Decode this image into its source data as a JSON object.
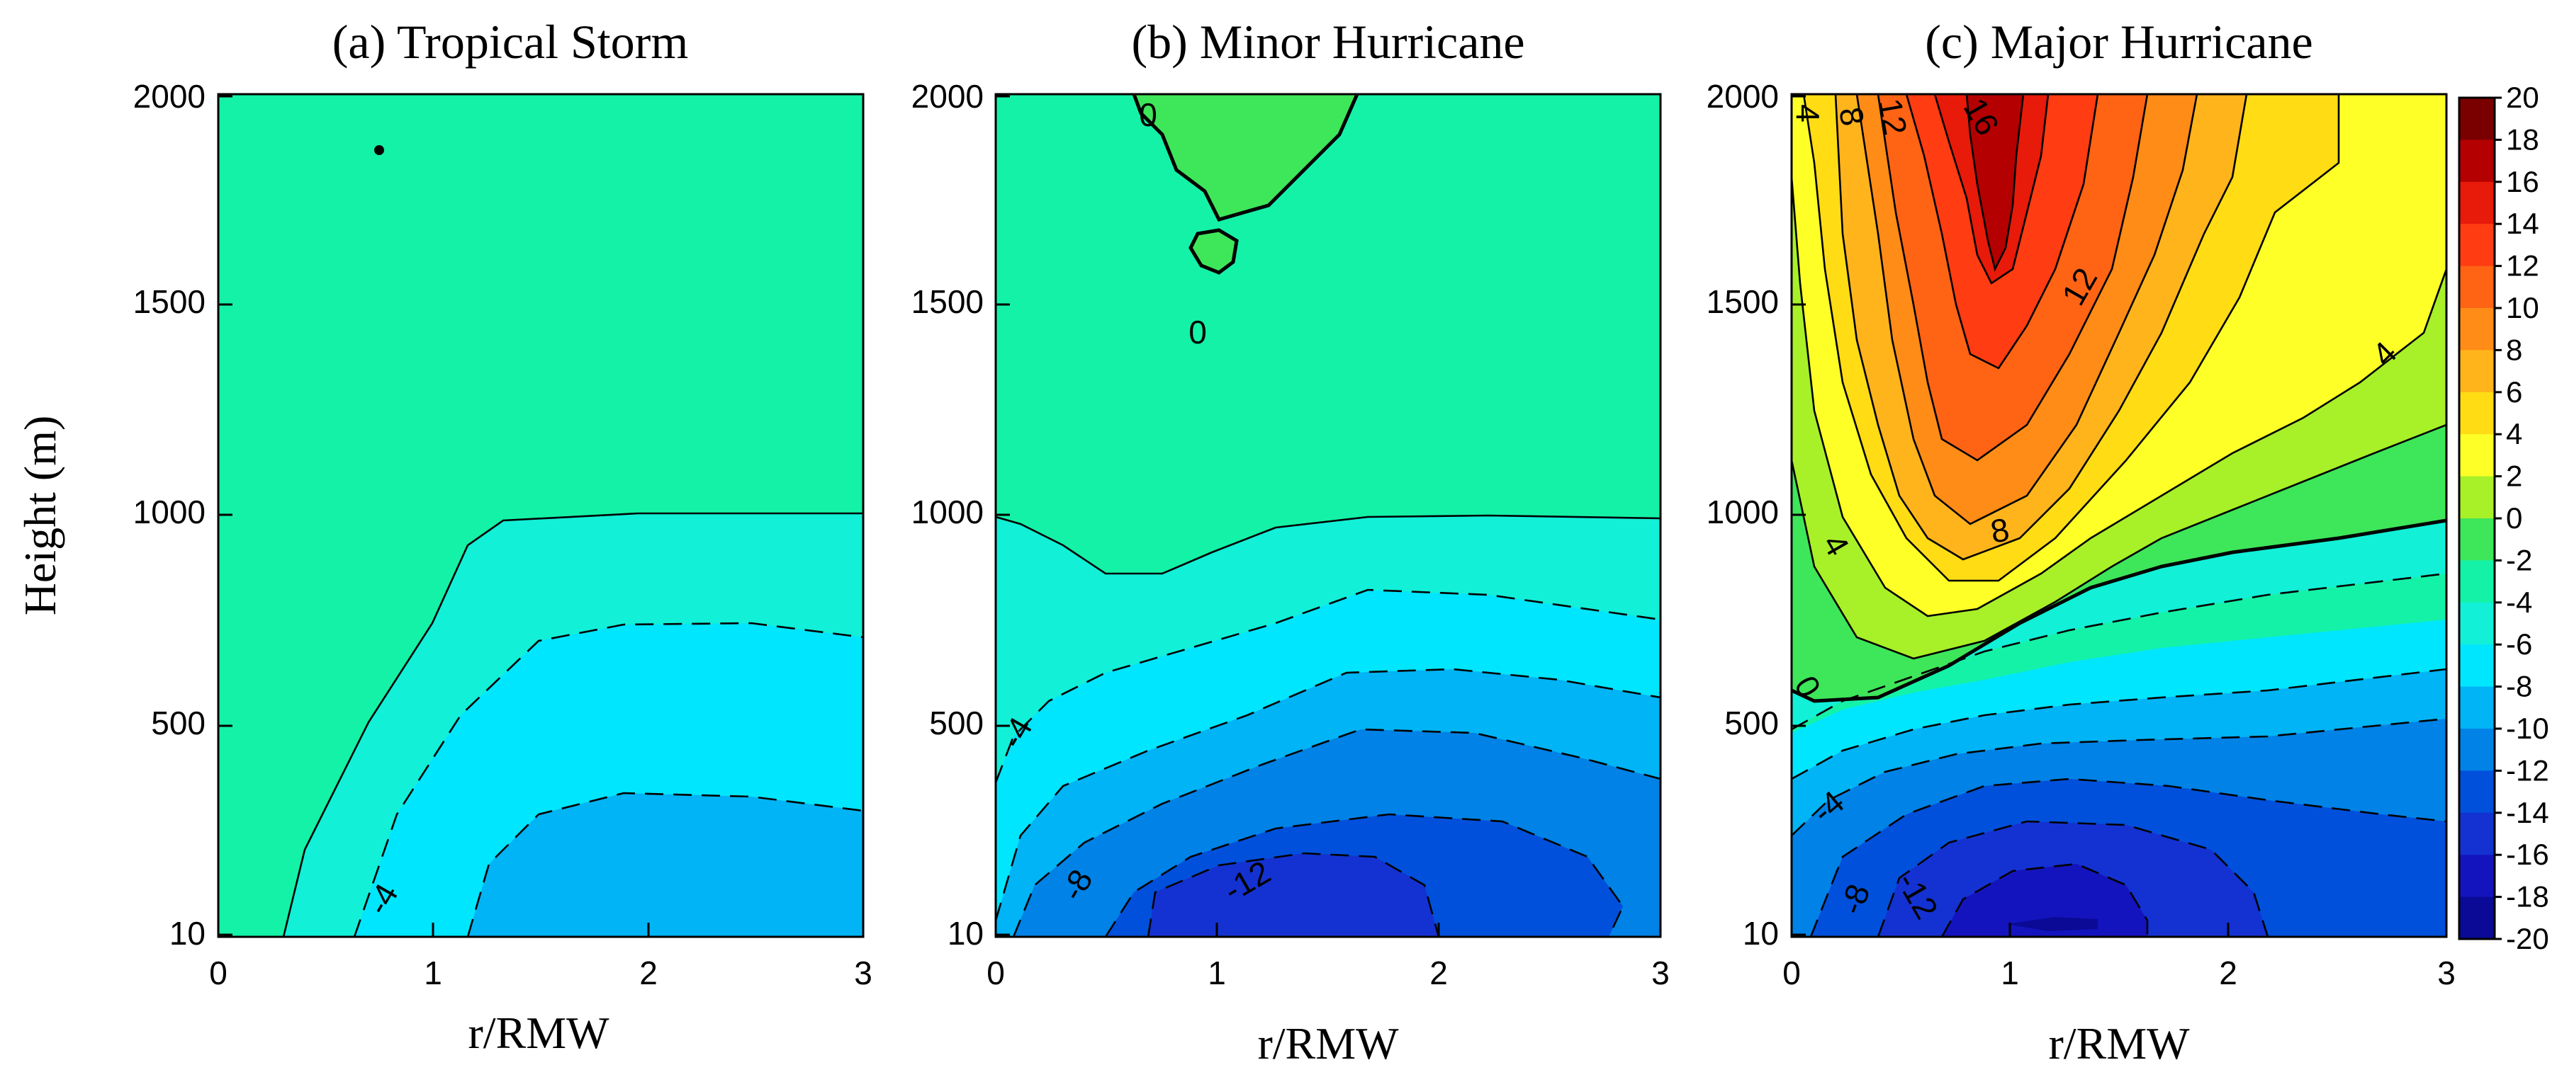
{
  "chart_data": [
    {
      "type": "contour",
      "panel": "a",
      "title": "(a) Tropical Storm",
      "xlabel": "r/RMW",
      "ylabel": "Height (m)",
      "xlim": [
        0,
        3
      ],
      "ylim": [
        10,
        2000
      ],
      "xticks": [
        "0",
        "1",
        "2",
        "3"
      ],
      "yticks": [
        "10",
        "500",
        "1000",
        "1500",
        "2000"
      ],
      "contour_labels": [
        "-4"
      ],
      "description_values": {
        "min": -8,
        "max": 0
      }
    },
    {
      "type": "contour",
      "panel": "b",
      "title": "(b) Minor Hurricane",
      "xlabel": "r/RMW",
      "ylabel": "",
      "xlim": [
        0,
        3
      ],
      "ylim": [
        10,
        2000
      ],
      "xticks": [
        "0",
        "1",
        "2",
        "3"
      ],
      "yticks": [
        "10",
        "500",
        "1000",
        "1500",
        "2000"
      ],
      "contour_labels": [
        "0",
        "0",
        "-4",
        "-8",
        "-12"
      ],
      "description_values": {
        "min": -14,
        "max": 2
      }
    },
    {
      "type": "contour",
      "panel": "c",
      "title": "(c) Major Hurricane",
      "xlabel": "r/RMW",
      "ylabel": "",
      "xlim": [
        0,
        3
      ],
      "ylim": [
        10,
        2000
      ],
      "xticks": [
        "0",
        "1",
        "2",
        "3"
      ],
      "yticks": [
        "10",
        "500",
        "1000",
        "1500",
        "2000"
      ],
      "contour_labels": [
        "4",
        "8",
        "12",
        "16",
        "12",
        "4",
        "8",
        "4",
        "0",
        "-4",
        "-8",
        "-12"
      ],
      "description_values": {
        "min": -18,
        "max": 18
      }
    }
  ],
  "colorbar": {
    "levels": [
      "20",
      "18",
      "16",
      "14",
      "12",
      "10",
      "8",
      "6",
      "4",
      "2",
      "0",
      "-2",
      "-4",
      "-6",
      "-8",
      "-10",
      "-12",
      "-14",
      "-16",
      "-18",
      "-20"
    ],
    "colors": [
      "#7a0000",
      "#b40000",
      "#e81a0a",
      "#ff3c12",
      "#ff6414",
      "#ff8c16",
      "#ffb41c",
      "#ffdc14",
      "#ffff28",
      "#a8f028",
      "#3ee65a",
      "#14f2a8",
      "#12f0d8",
      "#00e6ff",
      "#00b4f5",
      "#0082e6",
      "#0050dc",
      "#1432d2",
      "#1414be",
      "#0a0a96"
    ]
  },
  "colors": {
    "c_pos18": "#b40000",
    "c_pos16": "#e81a0a",
    "c_pos14": "#ff3c12",
    "c_pos12": "#ff6414",
    "c_pos10": "#ff8c16",
    "c_pos8": "#ffb41c",
    "c_pos6": "#ffdc14",
    "c_pos4": "#ffff28",
    "c_pos2": "#a8f028",
    "c_0": "#3ee65a",
    "c_neg0": "#14f2a8",
    "c_neg2": "#12f0d8",
    "c_neg4": "#00e6ff",
    "c_neg6": "#00b4f5",
    "c_neg8": "#0082e6",
    "c_neg10": "#0050dc",
    "c_neg12": "#1432d2",
    "c_neg14": "#1414be"
  }
}
